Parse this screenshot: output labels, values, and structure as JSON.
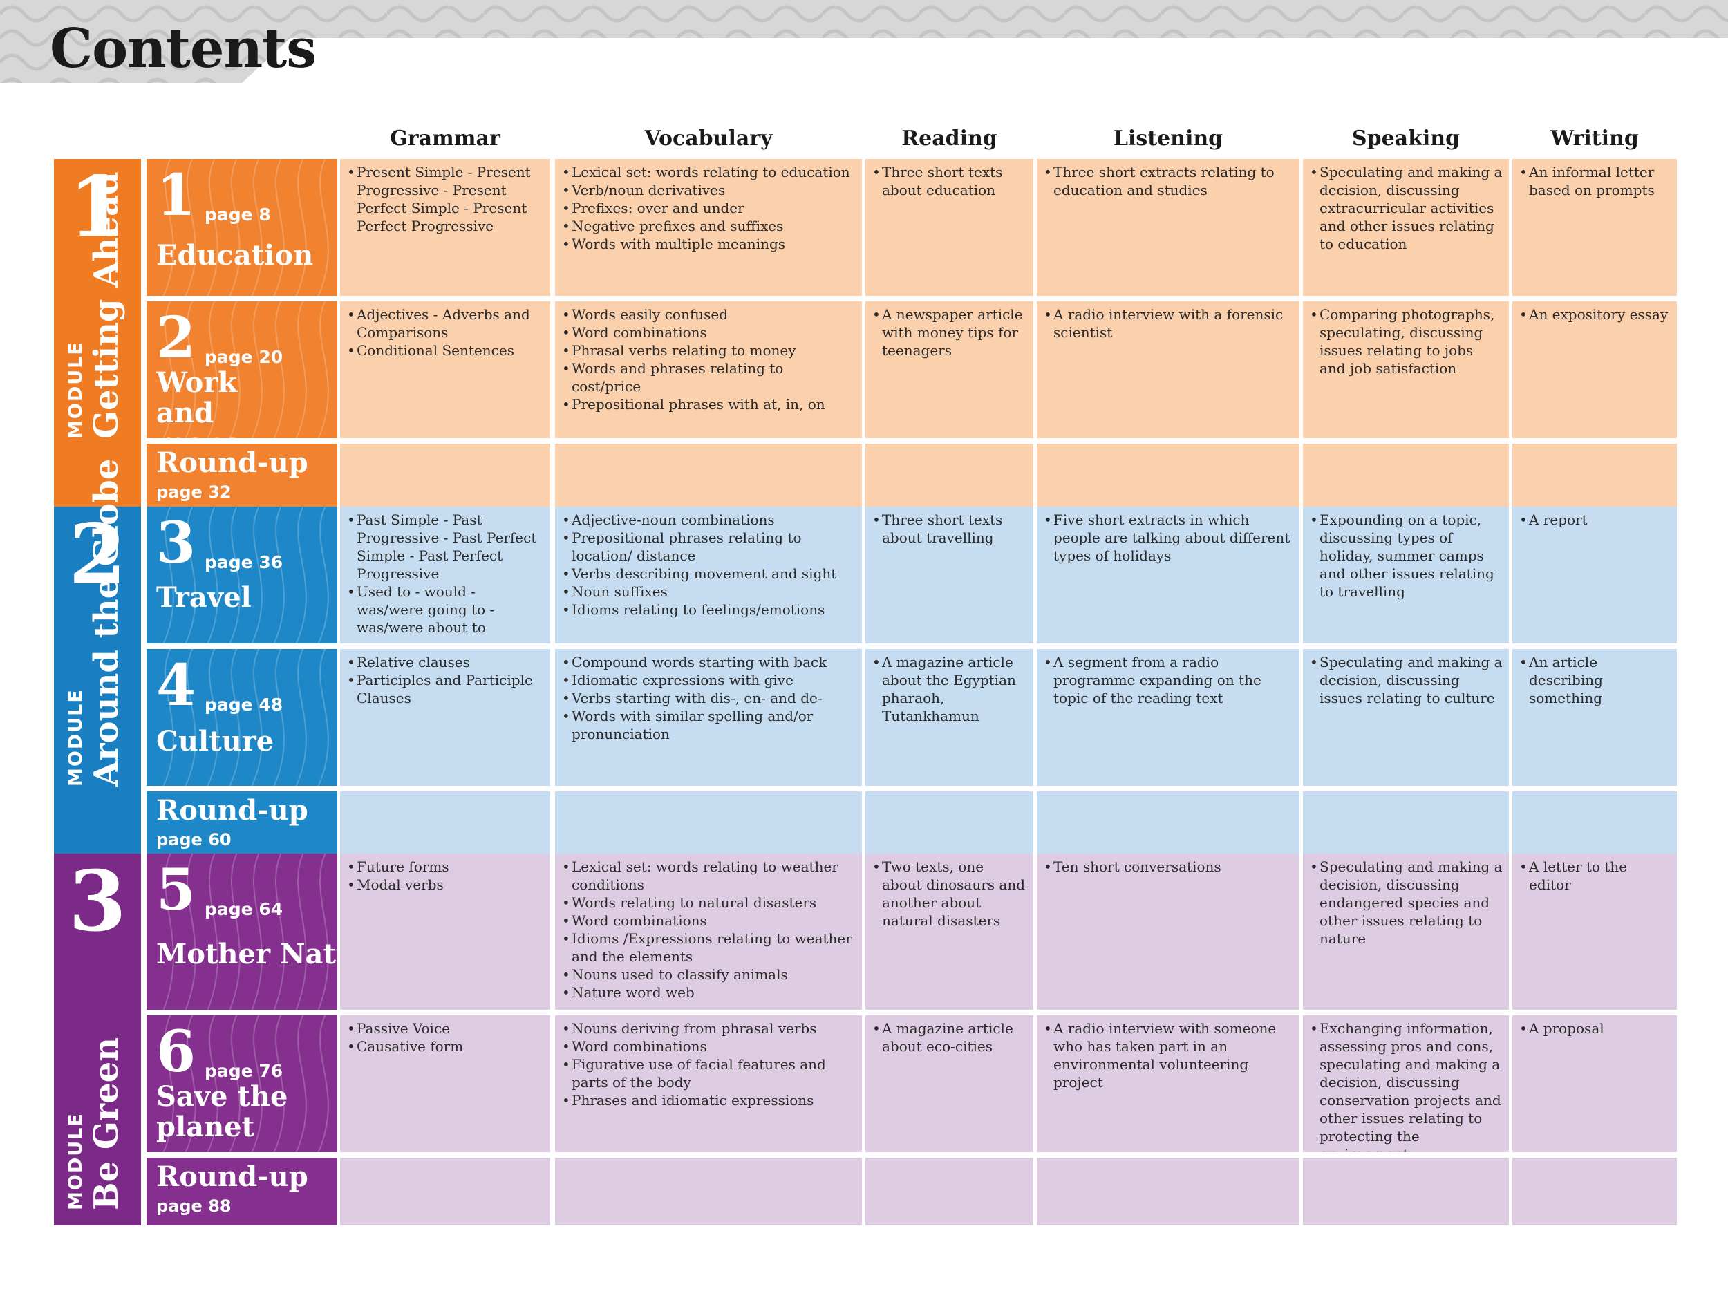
{
  "page": {
    "title": "Contents"
  },
  "columns": [
    "Grammar",
    "Vocabulary",
    "Reading",
    "Listening",
    "Speaking",
    "Writing"
  ],
  "colors": {
    "module1": "#EF7B23",
    "module1_tile": "#F08230",
    "module1_cell": "#FBD0AC",
    "module2": "#1A7FC1",
    "module2_tile": "#1E87C8",
    "module2_cell": "#C6DDF1",
    "module3": "#7C2A87",
    "module3_tile": "#85308F",
    "module3_cell": "#DECCE2",
    "header_band": "#D7D7D7"
  },
  "modules": [
    {
      "id": "m1",
      "number": "1",
      "word": "MODULE",
      "name": "Getting Ahead",
      "units": [
        {
          "number": "1",
          "page": "page 8",
          "title": "Education",
          "cells": [
            [
              "Present Simple - Present Progressive - Present Perfect Simple - Present Perfect Progressive"
            ],
            [
              "Lexical set: words relating to education",
              "Verb/noun derivatives",
              "Prefixes: over and under",
              "Negative prefixes and suffixes",
              "Words with multiple meanings"
            ],
            [
              "Three short texts about education"
            ],
            [
              "Three short extracts relating to education and studies"
            ],
            [
              "Speculating and making a decision, discussing extracurricular activities and other issues relating to education"
            ],
            [
              "An informal letter based on prompts"
            ]
          ]
        },
        {
          "number": "2",
          "page": "page 20",
          "title": "Work and money",
          "cells": [
            [
              "Adjectives - Adverbs and Comparisons",
              "Conditional Sentences"
            ],
            [
              "Words easily confused",
              "Word combinations",
              "Phrasal verbs relating to money",
              "Words and phrases relating to cost/price",
              "Prepositional phrases with at, in, on"
            ],
            [
              "A  newspaper article with money tips for teenagers"
            ],
            [
              "A radio interview with a forensic scientist"
            ],
            [
              "Comparing photographs, speculating, discussing issues relating to jobs and job satisfaction"
            ],
            [
              "An expository essay"
            ]
          ]
        }
      ],
      "roundup": {
        "title": "Round-up",
        "page": "page 32"
      }
    },
    {
      "id": "m2",
      "number": "2",
      "word": "MODULE",
      "name": "Around the Globe",
      "units": [
        {
          "number": "3",
          "page": "page 36",
          "title": "Travel",
          "cells": [
            [
              "Past Simple - Past Progressive - Past Perfect Simple - Past Perfect Progressive",
              "Used to - would - was/were going to - was/were about to"
            ],
            [
              "Adjective-noun combinations",
              "Prepositional phrases relating to location/ distance",
              "Verbs describing movement and sight",
              "Noun suffixes",
              "Idioms relating to feelings/emotions"
            ],
            [
              "Three short texts about travelling"
            ],
            [
              "Five short extracts in which people are talking about different types of holidays"
            ],
            [
              "Expounding on a topic, discussing types of holiday, summer camps and other issues relating to travelling"
            ],
            [
              "A report"
            ]
          ]
        },
        {
          "number": "4",
          "page": "page 48",
          "title": "Culture",
          "cells": [
            [
              "Relative clauses",
              "Participles and Participle Clauses"
            ],
            [
              "Compound words starting with back",
              "Idiomatic expressions with give",
              "Verbs starting with dis-, en- and de-",
              "Words with similar spelling and/or pronunciation"
            ],
            [
              "A magazine article about the Egyptian pharaoh, Tutankhamun"
            ],
            [
              "A segment from a radio programme expanding on the topic of the reading text"
            ],
            [
              "Speculating and making a decision, discussing issues relating to culture"
            ],
            [
              "An article describing something"
            ]
          ]
        }
      ],
      "roundup": {
        "title": "Round-up",
        "page": "page 60"
      }
    },
    {
      "id": "m3",
      "number": "3",
      "word": "MODULE",
      "name": "Be Green",
      "units": [
        {
          "number": "5",
          "page": "page 64",
          "title": "Mother Nature",
          "cells": [
            [
              "Future forms",
              "Modal verbs"
            ],
            [
              "Lexical set: words relating to weather conditions",
              "Words relating to natural disasters",
              "Word combinations",
              "Idioms /Expressions relating to weather and the elements",
              "Nouns used to classify animals",
              "Nature word web"
            ],
            [
              "Two texts, one about dinosaurs and another about natural disasters"
            ],
            [
              "Ten short conversations"
            ],
            [
              "Speculating and making a decision, discussing endangered species and other issues relating to nature"
            ],
            [
              "A letter to the editor"
            ]
          ]
        },
        {
          "number": "6",
          "page": "page 76",
          "title": "Save the planet",
          "cells": [
            [
              "Passive Voice",
              "Causative form"
            ],
            [
              "Nouns deriving from phrasal verbs",
              "Word combinations",
              "Figurative use of facial features and parts of the body",
              "Phrases and idiomatic expressions"
            ],
            [
              "A magazine article about eco-cities"
            ],
            [
              "A radio interview with someone who has taken part in an environmental volunteering project"
            ],
            [
              "Exchanging information, assessing pros and cons, speculating and making a decision, discussing conservation projects and other issues relating to protecting the environment"
            ],
            [
              "A proposal"
            ]
          ]
        }
      ],
      "roundup": {
        "title": "Round-up",
        "page": "page 88"
      }
    }
  ]
}
